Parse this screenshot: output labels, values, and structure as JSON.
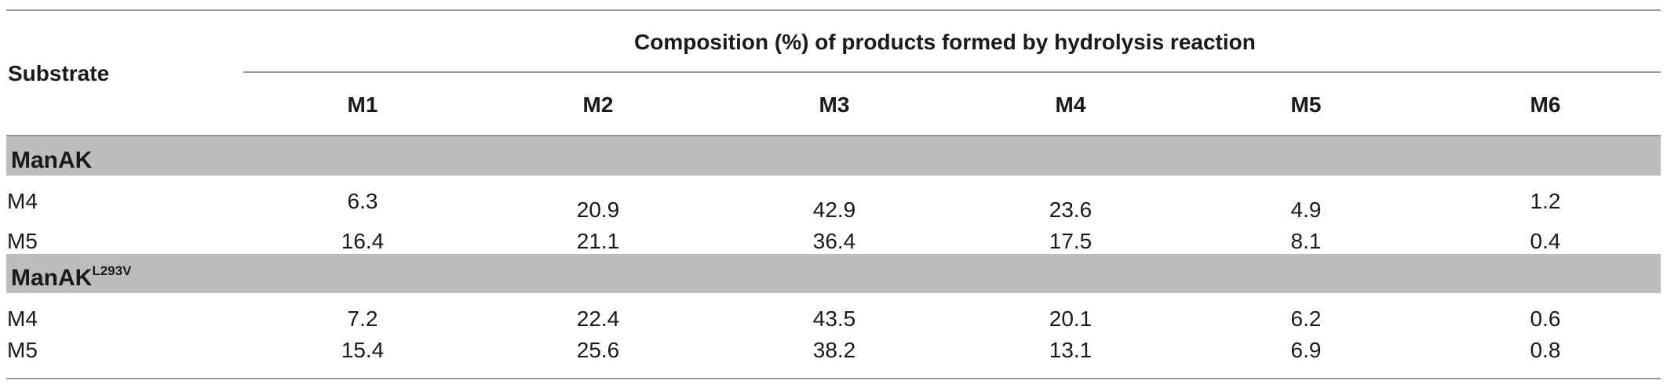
{
  "table": {
    "substrate_label": "Substrate",
    "spanner": "Composition (%) of products formed by hydrolysis reaction",
    "columns": [
      "M1",
      "M2",
      "M3",
      "M4",
      "M5",
      "M6"
    ],
    "groups": [
      {
        "name": "ManAK",
        "superscript": "",
        "rows": [
          {
            "label": "M4",
            "values": [
              "6.3",
              "20.9",
              "42.9",
              "23.6",
              "4.9",
              "1.2"
            ]
          },
          {
            "label": "M5",
            "values": [
              "16.4",
              "21.1",
              "36.4",
              "17.5",
              "8.1",
              "0.4"
            ]
          }
        ]
      },
      {
        "name": "ManAK",
        "superscript": "L293V",
        "rows": [
          {
            "label": "M4",
            "values": [
              "7.2",
              "22.4",
              "43.5",
              "20.1",
              "6.2",
              "0.6"
            ]
          },
          {
            "label": "M5",
            "values": [
              "15.4",
              "25.6",
              "38.2",
              "13.1",
              "6.9",
              "0.8"
            ]
          }
        ]
      }
    ]
  }
}
